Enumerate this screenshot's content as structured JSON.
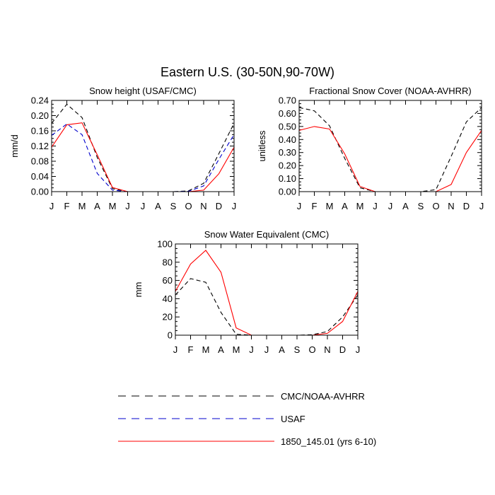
{
  "figure_title": "Eastern U.S. (30-50N,90-70W)",
  "legend": [
    {
      "label": "CMC/NOAA-AVHRR",
      "color": "#000000",
      "dash": "dashed"
    },
    {
      "label": "USAF",
      "color": "#0000cc",
      "dash": "dashed"
    },
    {
      "label": "1850_145.01 (yrs 6-10)",
      "color": "#ff0000",
      "dash": "solid"
    }
  ],
  "chart_data": [
    {
      "type": "line",
      "title": "Snow height (USAF/CMC)",
      "xlabel": "",
      "ylabel": "mm/d",
      "categories": [
        "J",
        "F",
        "M",
        "A",
        "M",
        "J",
        "J",
        "A",
        "S",
        "O",
        "N",
        "D",
        "J"
      ],
      "yticks": [
        "0.00",
        "0.04",
        "0.08",
        "0.12",
        "0.16",
        "0.20",
        "0.24"
      ],
      "ylim": [
        0,
        0.24
      ],
      "series": [
        {
          "name": "CMC/NOAA-AVHRR",
          "color": "#000000",
          "dash": "dashed",
          "values": [
            0.18,
            0.23,
            0.195,
            0.09,
            0.008,
            0.0,
            0.0,
            0.0,
            0.0,
            0.002,
            0.022,
            0.1,
            0.18
          ]
        },
        {
          "name": "USAF",
          "color": "#0000cc",
          "dash": "dashed",
          "values": [
            0.148,
            0.178,
            0.15,
            0.048,
            0.004,
            0.0,
            0.0,
            0.0,
            0.0,
            0.001,
            0.015,
            0.085,
            0.15
          ]
        },
        {
          "name": "1850_145.01 (yrs 6-10)",
          "color": "#ff0000",
          "dash": "solid",
          "values": [
            0.117,
            0.176,
            0.181,
            0.097,
            0.011,
            0.0,
            0.0,
            0.0,
            0.0,
            0.0,
            0.004,
            0.047,
            0.117
          ]
        }
      ]
    },
    {
      "type": "line",
      "title": "Fractional Snow Cover (NOAA-AVHRR)",
      "xlabel": "",
      "ylabel": "unitless",
      "categories": [
        "J",
        "F",
        "M",
        "A",
        "M",
        "J",
        "J",
        "A",
        "S",
        "O",
        "N",
        "D",
        "J"
      ],
      "yticks": [
        "0.00",
        "0.10",
        "0.20",
        "0.30",
        "0.40",
        "0.50",
        "0.60",
        "0.70"
      ],
      "ylim": [
        0,
        0.7
      ],
      "series": [
        {
          "name": "CMC/NOAA-AVHRR",
          "color": "#000000",
          "dash": "dashed",
          "values": [
            0.645,
            0.62,
            0.505,
            0.255,
            0.03,
            0.0,
            0.0,
            0.0,
            0.0,
            0.015,
            0.27,
            0.535,
            0.645
          ]
        },
        {
          "name": "1850_145.01 (yrs 6-10)",
          "color": "#ff0000",
          "dash": "solid",
          "values": [
            0.47,
            0.5,
            0.48,
            0.29,
            0.04,
            0.0,
            0.0,
            0.0,
            0.0,
            0.0,
            0.055,
            0.3,
            0.47
          ]
        }
      ]
    },
    {
      "type": "line",
      "title": "Snow Water Equivalent (CMC)",
      "xlabel": "",
      "ylabel": "mm",
      "categories": [
        "J",
        "F",
        "M",
        "A",
        "M",
        "J",
        "J",
        "A",
        "S",
        "O",
        "N",
        "D",
        "J"
      ],
      "yticks": [
        "0",
        "20",
        "40",
        "60",
        "80",
        "100"
      ],
      "ylim": [
        0,
        100
      ],
      "series": [
        {
          "name": "CMC/NOAA-AVHRR",
          "color": "#000000",
          "dash": "dashed",
          "values": [
            44,
            62,
            58,
            25,
            1,
            0,
            0,
            0,
            0,
            0.5,
            4,
            20,
            44
          ]
        },
        {
          "name": "1850_145.01 (yrs 6-10)",
          "color": "#ff0000",
          "dash": "solid",
          "values": [
            48,
            78,
            93,
            69,
            8,
            0,
            0,
            0,
            0,
            0,
            2,
            15,
            48
          ]
        }
      ]
    }
  ]
}
